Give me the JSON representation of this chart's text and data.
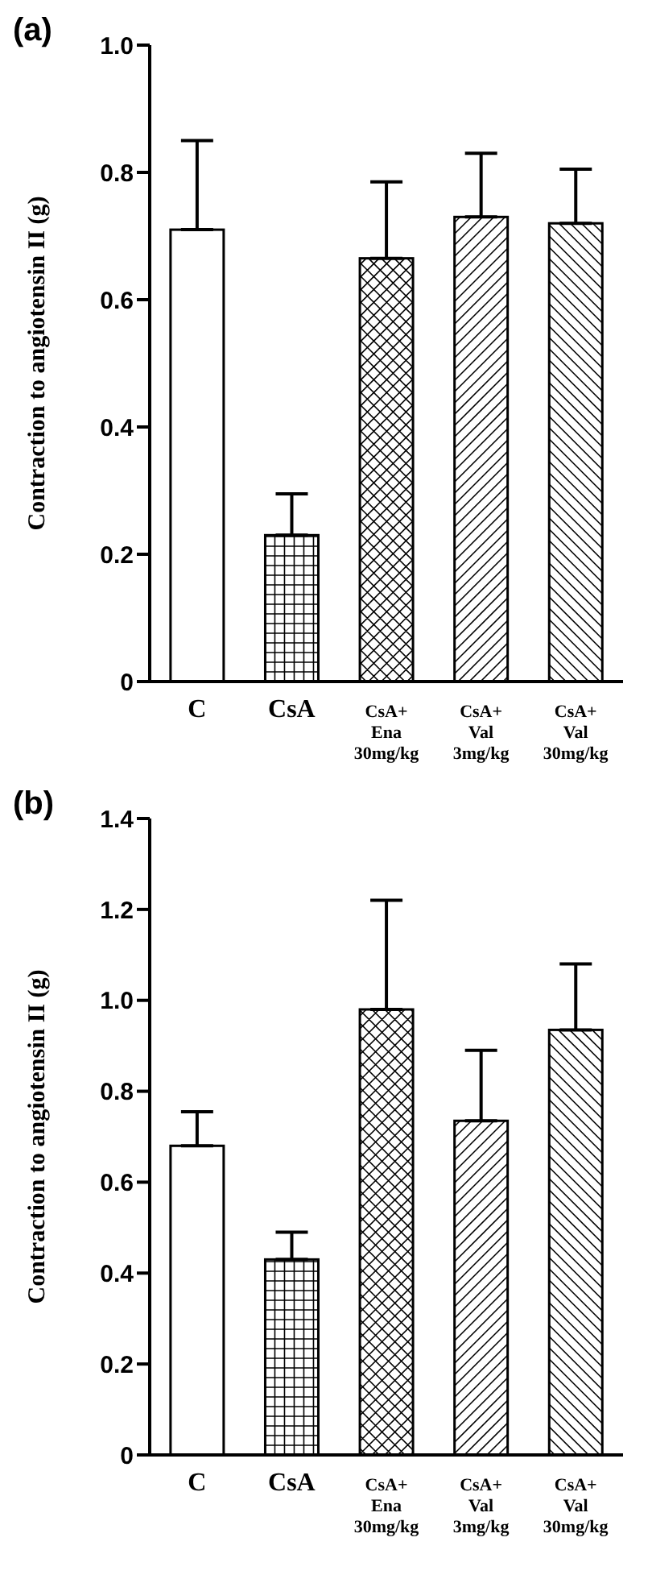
{
  "chart_data": [
    {
      "type": "bar",
      "title": "(a)",
      "ylabel": "Contraction to angiotensin II (g)",
      "categories": [
        "C",
        "CsA",
        "CsA+ Ena 30mg/kg",
        "CsA+ Val 3mg/kg",
        "CsA+ Val 30mg/kg"
      ],
      "values": [
        0.71,
        0.23,
        0.665,
        0.73,
        0.72
      ],
      "color": "#ffffff",
      "errors": [
        [
          0.71,
          0.85
        ],
        [
          0.23,
          0.295
        ],
        [
          0.665,
          0.785
        ],
        [
          0.73,
          0.83
        ],
        [
          0.72,
          0.805
        ]
      ],
      "ylim": [
        0,
        1
      ],
      "yticks": [
        0,
        0.2,
        0.4,
        0.6,
        0.8,
        {
          "value": 1,
          "label": "1.0"
        }
      ],
      "grid": false,
      "legend": false
    },
    {
      "type": "bar",
      "title": "(b)",
      "ylabel": "Contraction to angiotensin II (g)",
      "categories": [
        "C",
        "CsA",
        "CsA+ Ena 30mg/kg",
        "CsA+ Val 3mg/kg",
        "CsA+ Val 30mg/kg"
      ],
      "values": [
        0.68,
        0.43,
        0.98,
        0.735,
        0.935
      ],
      "color": "#ffffff",
      "errors": [
        [
          0.68,
          0.755
        ],
        [
          0.43,
          0.49
        ],
        [
          0.98,
          1.22
        ],
        [
          0.735,
          0.89
        ],
        [
          0.935,
          1.08
        ]
      ],
      "ylim": [
        0,
        1.4
      ],
      "yticks": [
        0,
        0.2,
        0.4,
        0.6,
        0.8,
        {
          "value": 1,
          "label": "1.0"
        },
        1.2,
        1.4
      ],
      "grid": false,
      "legend": false
    }
  ]
}
